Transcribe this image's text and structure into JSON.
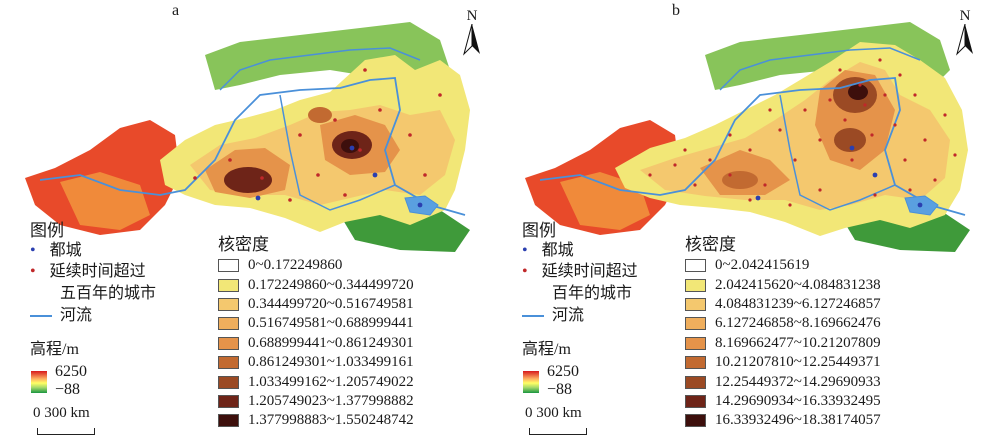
{
  "panels": [
    {
      "letter": "a",
      "north": "N",
      "legend_title": "图例",
      "capital_label": "都城",
      "city_label_line1": "延续时间超过",
      "city_label_line2": "五百年的城市",
      "river_label": "河流",
      "elevation_title": "高程/m",
      "elevation_max": "6250",
      "elevation_min": "−88",
      "scale_label": "0    300 km",
      "density_title": "核密度",
      "density_classes": [
        {
          "range": "0~0.172249860",
          "color": "#ffffff"
        },
        {
          "range": "0.172249860~0.344499720",
          "color": "#f2e777"
        },
        {
          "range": "0.344499720~0.516749581",
          "color": "#f4c86e"
        },
        {
          "range": "0.516749581~0.688999441",
          "color": "#efae5d"
        },
        {
          "range": "0.688999441~0.861249301",
          "color": "#e5934a"
        },
        {
          "range": "0.861249301~1.033499161",
          "color": "#c26a31"
        },
        {
          "range": "1.033499162~1.205749022",
          "color": "#9b4a24"
        },
        {
          "range": "1.205749023~1.377998882",
          "color": "#6e2418"
        },
        {
          "range": "1.377998883~1.550248742",
          "color": "#3d0f0c"
        }
      ]
    },
    {
      "letter": "b",
      "north": "N",
      "legend_title": "图例",
      "capital_label": "都城",
      "city_label_line1": "延续时间超过",
      "city_label_line2": "百年的城市",
      "river_label": "河流",
      "elevation_title": "高程/m",
      "elevation_max": "6250",
      "elevation_min": "−88",
      "scale_label": "0    300 km",
      "density_title": "核密度",
      "density_classes": [
        {
          "range": "0~2.042415619",
          "color": "#ffffff"
        },
        {
          "range": "2.042415620~4.084831238",
          "color": "#f2e777"
        },
        {
          "range": "4.084831239~6.127246857",
          "color": "#f4c86e"
        },
        {
          "range": "6.127246858~8.169662476",
          "color": "#efae5d"
        },
        {
          "range": "8.169662477~10.21207809",
          "color": "#e5934a"
        },
        {
          "range": "10.21207810~12.25449371",
          "color": "#c26a31"
        },
        {
          "range": "12.25449372~14.29690933",
          "color": "#9b4a24"
        },
        {
          "range": "14.29690934~16.33932495",
          "color": "#6e2418"
        },
        {
          "range": "16.33932496~18.38174057",
          "color": "#3d0f0c"
        }
      ]
    }
  ]
}
